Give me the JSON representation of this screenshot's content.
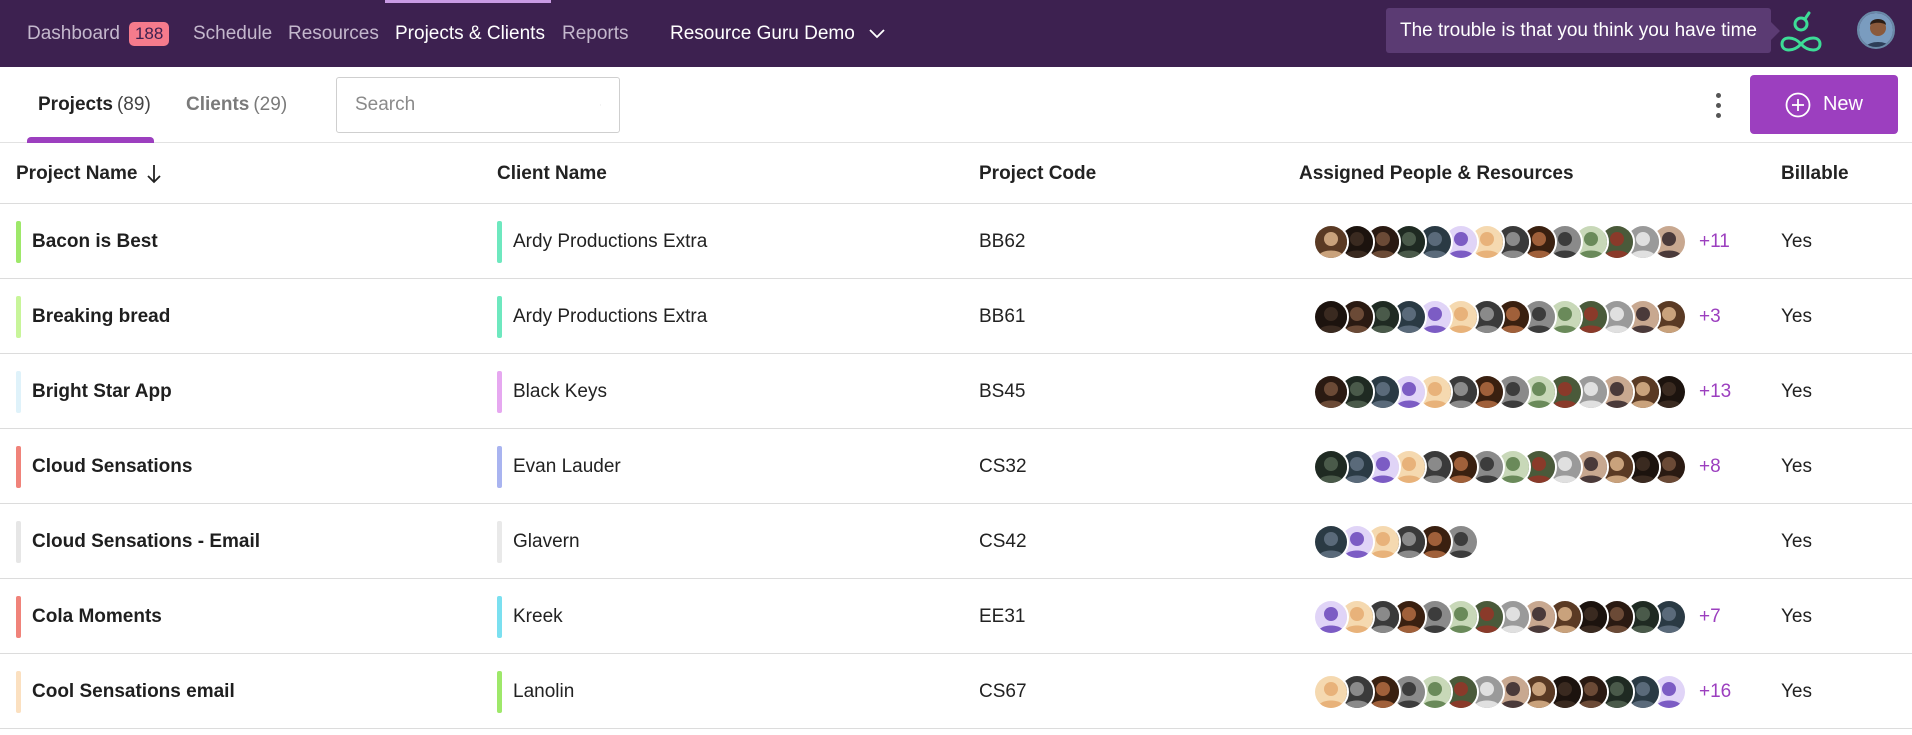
{
  "nav": {
    "items": [
      {
        "label": "Dashboard",
        "badge": "188"
      },
      {
        "label": "Schedule"
      },
      {
        "label": "Resources"
      },
      {
        "label": "Projects & Clients",
        "active": true
      },
      {
        "label": "Reports"
      }
    ],
    "workspace": "Resource Guru Demo",
    "tooltip": "The trouble is that you think you have time",
    "logo_icon": "resource-guru-logo",
    "colors": {
      "nav_bg": "#3d2150",
      "accent": "#9c3fbf",
      "badge": "#f57b8c"
    }
  },
  "subbar": {
    "tabs": [
      {
        "label": "Projects",
        "count": "(89)",
        "active": true
      },
      {
        "label": "Clients",
        "count": "(29)"
      }
    ],
    "search_placeholder": "Search",
    "new_button": "New"
  },
  "table": {
    "headers": {
      "project": "Project Name",
      "client": "Client Name",
      "code": "Project Code",
      "assigned": "Assigned People & Resources",
      "billable": "Billable"
    },
    "rows": [
      {
        "project": "Bacon is Best",
        "project_color": "#9ee86a",
        "client": "Ardy Productions Extra",
        "client_color": "#6ee8bf",
        "code": "BB62",
        "avatar_count": 14,
        "more": "+11",
        "billable": "Yes"
      },
      {
        "project": "Breaking bread",
        "project_color": "#c8f59a",
        "client": "Ardy Productions Extra",
        "client_color": "#6ee8bf",
        "code": "BB61",
        "avatar_count": 14,
        "more": "+3",
        "billable": "Yes"
      },
      {
        "project": "Bright Star App",
        "project_color": "#dff2fa",
        "client": "Black Keys",
        "client_color": "#e6a8f0",
        "code": "BS45",
        "avatar_count": 14,
        "more": "+13",
        "billable": "Yes"
      },
      {
        "project": "Cloud Sensations",
        "project_color": "#f0837a",
        "client": "Evan Lauder",
        "client_color": "#a9b4f0",
        "code": "CS32",
        "avatar_count": 14,
        "more": "+8",
        "billable": "Yes"
      },
      {
        "project": "Cloud Sensations - Email",
        "project_color": "#e6e6e6",
        "client": "Glavern",
        "client_color": "#e9e9e9",
        "code": "CS42",
        "avatar_count": 6,
        "more": "",
        "billable": "Yes"
      },
      {
        "project": "Cola Moments",
        "project_color": "#f0837a",
        "client": "Kreek",
        "client_color": "#7be0f0",
        "code": "EE31",
        "avatar_count": 14,
        "more": "+7",
        "billable": "Yes"
      },
      {
        "project": "Cool Sensations email",
        "project_color": "#fbe0c0",
        "client": "Lanolin",
        "client_color": "#9ee86a",
        "code": "CS67",
        "avatar_count": 14,
        "more": "+16",
        "billable": "Yes"
      }
    ]
  }
}
